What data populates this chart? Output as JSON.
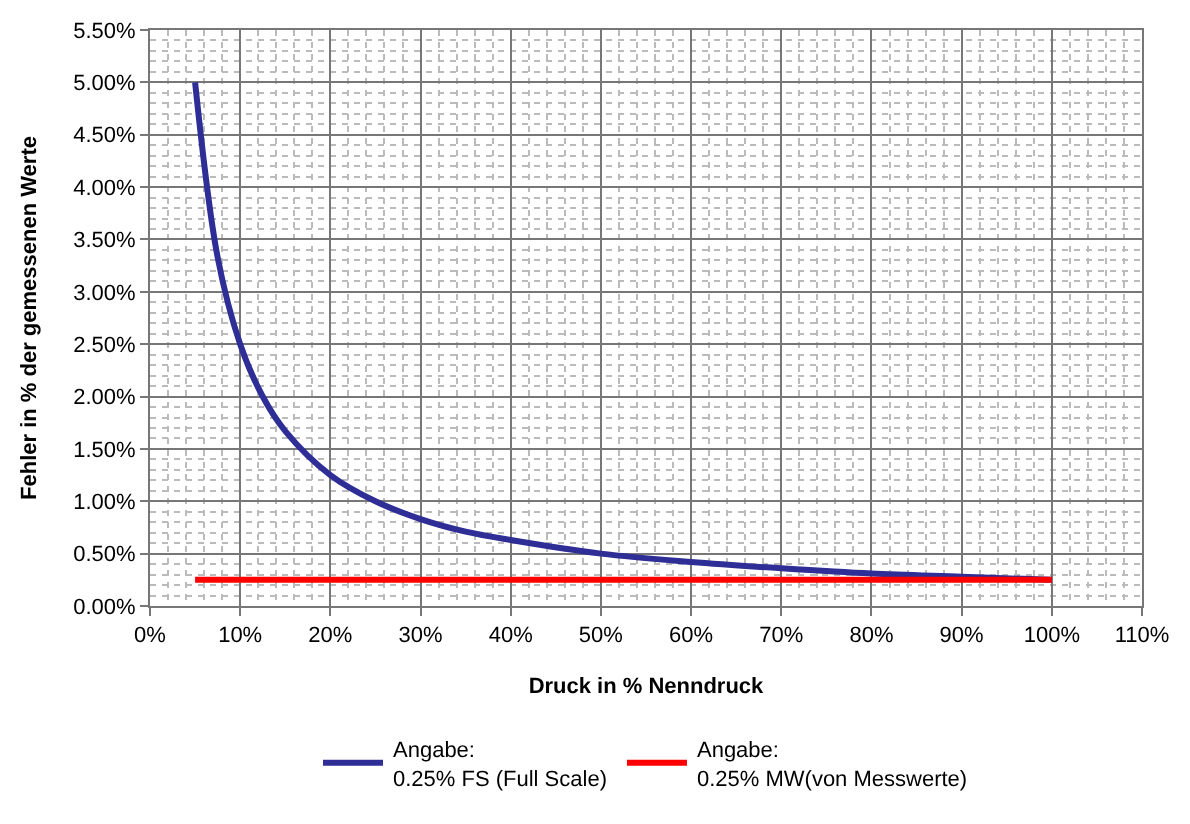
{
  "chart_data": {
    "type": "line",
    "xlabel": "Druck in % Nenndruck",
    "ylabel": "Fehler in % der gemessenen Werte",
    "x": [
      5,
      7.5,
      10,
      12.5,
      15,
      20,
      25,
      30,
      35,
      40,
      50,
      60,
      70,
      80,
      90,
      100
    ],
    "series": [
      {
        "name": "Angabe:\n0.25% FS (Full Scale)",
        "color": "#2e2e96",
        "values": [
          5.0,
          3.33,
          2.5,
          2.0,
          1.67,
          1.25,
          1.0,
          0.83,
          0.71,
          0.63,
          0.5,
          0.42,
          0.36,
          0.31,
          0.28,
          0.25
        ]
      },
      {
        "name": "Angabe:\n0.25% MW(von Messwerte)",
        "color": "#ff0000",
        "values": [
          0.25,
          0.25,
          0.25,
          0.25,
          0.25,
          0.25,
          0.25,
          0.25,
          0.25,
          0.25,
          0.25,
          0.25,
          0.25,
          0.25,
          0.25,
          0.25
        ]
      }
    ],
    "xlim": [
      0,
      110
    ],
    "xticks": [
      {
        "value": 0,
        "label": "0%"
      },
      {
        "value": 10,
        "label": "10%"
      },
      {
        "value": 20,
        "label": "20%"
      },
      {
        "value": 30,
        "label": "30%"
      },
      {
        "value": 40,
        "label": "40%"
      },
      {
        "value": 50,
        "label": "50%"
      },
      {
        "value": 60,
        "label": "60%"
      },
      {
        "value": 70,
        "label": "70%"
      },
      {
        "value": 80,
        "label": "80%"
      },
      {
        "value": 90,
        "label": "90%"
      },
      {
        "value": 100,
        "label": "100%"
      },
      {
        "value": 110,
        "label": "110%"
      }
    ],
    "ylim": [
      0,
      5.5
    ],
    "yticks": [
      {
        "value": 0,
        "label": "0.00%"
      },
      {
        "value": 0.5,
        "label": "0.50%"
      },
      {
        "value": 1,
        "label": "1.00%"
      },
      {
        "value": 1.5,
        "label": "1.50%"
      },
      {
        "value": 2,
        "label": "2.00%"
      },
      {
        "value": 2.5,
        "label": "2.50%"
      },
      {
        "value": 3,
        "label": "3.00%"
      },
      {
        "value": 3.5,
        "label": "3.50%"
      },
      {
        "value": 4,
        "label": "4.00%"
      },
      {
        "value": 4.5,
        "label": "4.50%"
      },
      {
        "value": 5,
        "label": "5.00%"
      },
      {
        "value": 5.5,
        "label": "5.50%"
      }
    ],
    "grid": true,
    "legend": "bottom",
    "marker": "none",
    "line_style": "solid"
  }
}
